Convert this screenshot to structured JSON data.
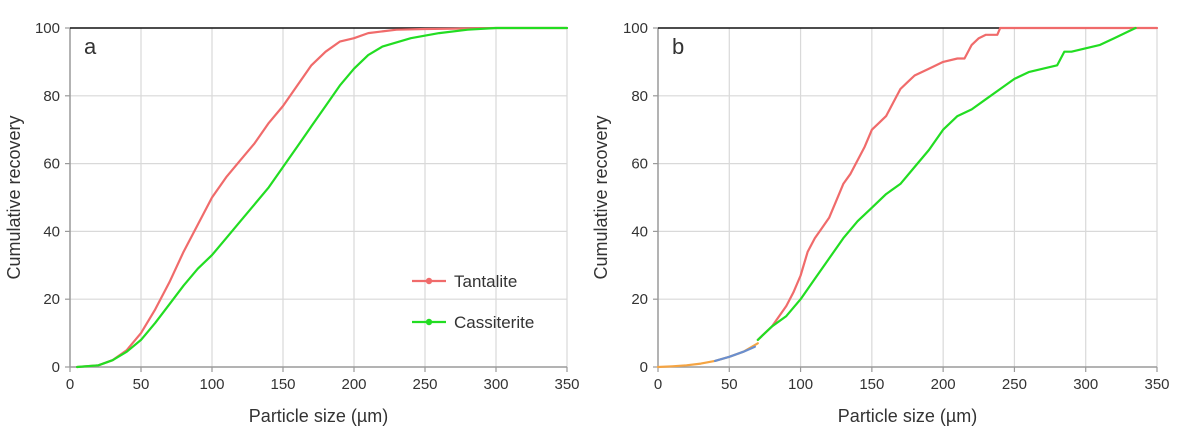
{
  "chart_data": [
    {
      "type": "line",
      "panel_label": "a",
      "xlabel": "Particle size (µm)",
      "ylabel": "Cumulative recovery",
      "xlim": [
        0,
        350
      ],
      "ylim": [
        0,
        100
      ],
      "x_ticks": [
        0,
        50,
        100,
        150,
        200,
        250,
        300,
        350
      ],
      "y_ticks": [
        0,
        20,
        40,
        60,
        80,
        100
      ],
      "grid": true,
      "legend_position": "bottom-right",
      "series": [
        {
          "name": "Tantalite",
          "color": "#f06b6b",
          "x": [
            5,
            20,
            30,
            40,
            50,
            60,
            70,
            80,
            90,
            100,
            110,
            120,
            130,
            140,
            150,
            160,
            170,
            180,
            190,
            200,
            210,
            220,
            230,
            250,
            270,
            300,
            350
          ],
          "y": [
            0,
            0.5,
            2,
            5,
            10,
            17,
            25,
            34,
            42,
            50,
            56,
            61,
            66,
            72,
            77,
            83,
            89,
            93,
            96,
            97,
            98.5,
            99,
            99.5,
            99.7,
            99.8,
            100,
            100
          ]
        },
        {
          "name": "Cassiterite",
          "color": "#22dd22",
          "x": [
            5,
            20,
            30,
            40,
            50,
            60,
            70,
            80,
            90,
            100,
            110,
            120,
            130,
            140,
            150,
            160,
            170,
            180,
            190,
            200,
            210,
            220,
            240,
            260,
            280,
            300,
            350
          ],
          "y": [
            0,
            0.5,
            2,
            4.5,
            8,
            13,
            18.5,
            24,
            29,
            33,
            38,
            43,
            48,
            53,
            59,
            65,
            71,
            77,
            83,
            88,
            92,
            94.5,
            97,
            98.5,
            99.5,
            100,
            100
          ]
        }
      ]
    },
    {
      "type": "line",
      "panel_label": "b",
      "xlabel": "Particle size (µm)",
      "ylabel": "Cumulative recovery",
      "xlim": [
        0,
        350
      ],
      "ylim": [
        0,
        100
      ],
      "x_ticks": [
        0,
        50,
        100,
        150,
        200,
        250,
        300,
        350
      ],
      "y_ticks": [
        0,
        20,
        40,
        60,
        80,
        100
      ],
      "grid": true,
      "series": [
        {
          "color": "#f5a442",
          "x": [
            0,
            10,
            20,
            30,
            40,
            50,
            60,
            70
          ],
          "y": [
            0,
            0.2,
            0.5,
            1,
            1.8,
            3,
            4.5,
            7
          ]
        },
        {
          "color": "#6a8fcf",
          "x": [
            40,
            50,
            60,
            68
          ],
          "y": [
            1.8,
            3,
            4.5,
            6
          ]
        },
        {
          "color": "#f06b6b",
          "x": [
            70,
            80,
            90,
            95,
            100,
            105,
            110,
            115,
            120,
            125,
            130,
            135,
            140,
            145,
            150,
            155,
            160,
            165,
            170,
            175,
            180,
            190,
            200,
            210,
            215,
            220,
            225,
            230,
            235,
            238,
            240,
            300,
            350
          ],
          "y": [
            8,
            12,
            18,
            22,
            27,
            34,
            38,
            41,
            44,
            49,
            54,
            57,
            61,
            65,
            70,
            72,
            74,
            78,
            82,
            84,
            86,
            88,
            90,
            91,
            91,
            95,
            97,
            98,
            98,
            98,
            100,
            100,
            100
          ]
        },
        {
          "color": "#22dd22",
          "x": [
            70,
            80,
            90,
            100,
            110,
            120,
            130,
            140,
            150,
            160,
            170,
            180,
            190,
            200,
            210,
            220,
            230,
            240,
            250,
            260,
            270,
            280,
            285,
            290,
            300,
            310,
            320,
            330,
            335
          ],
          "y": [
            8,
            12,
            15,
            20,
            26,
            32,
            38,
            43,
            47,
            51,
            54,
            59,
            64,
            70,
            74,
            76,
            79,
            82,
            85,
            87,
            88,
            89,
            93,
            93,
            94,
            95,
            97,
            99,
            100
          ]
        }
      ]
    }
  ]
}
